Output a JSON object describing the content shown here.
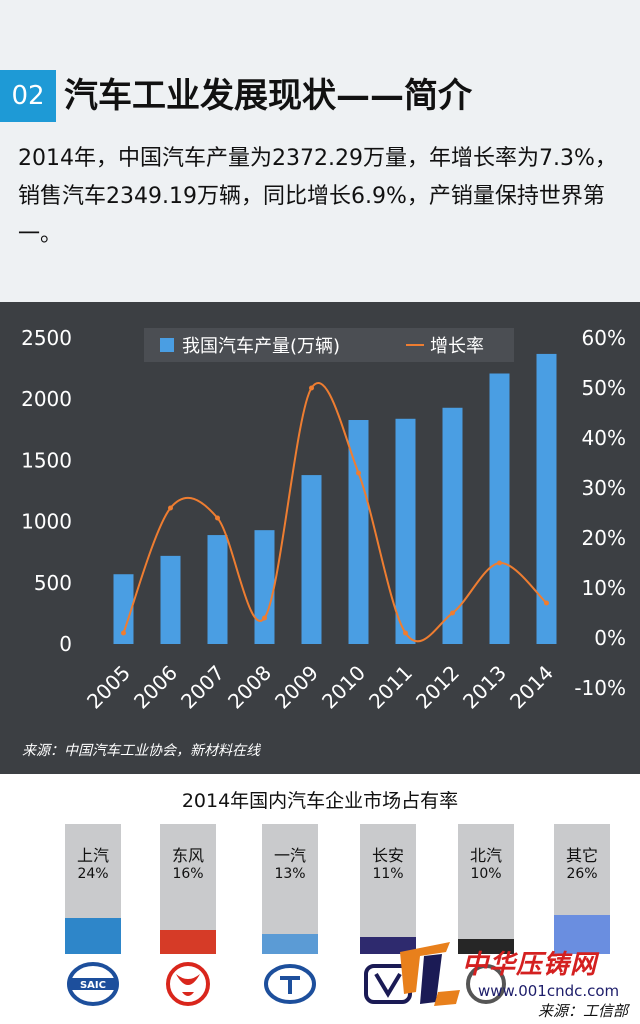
{
  "header": {
    "badge": "02",
    "title": "汽车工业发展现状——简介",
    "intro": "2014年，中国汽车产量为2372.29万量，年增长率为7.3%，销售汽车2349.19万辆，同比增长6.9%，产销量保持世界第一。"
  },
  "chart_data": {
    "type": "bar",
    "categories": [
      "2005",
      "2006",
      "2007",
      "2008",
      "2009",
      "2010",
      "2011",
      "2012",
      "2013",
      "2014"
    ],
    "series": [
      {
        "name": "我国汽车产量(万辆)",
        "type": "bar",
        "axis": "left",
        "values": [
          570,
          720,
          890,
          930,
          1380,
          1830,
          1840,
          1930,
          2210,
          2370
        ],
        "color": "#4a9ee3"
      },
      {
        "name": "增长率",
        "type": "line",
        "axis": "right",
        "values": [
          0.01,
          0.26,
          0.24,
          0.04,
          0.5,
          0.33,
          0.01,
          0.05,
          0.15,
          0.07
        ],
        "color": "#ee7d31"
      }
    ],
    "y_left": {
      "min": 0,
      "max": 2500,
      "ticks": [
        "0",
        "500",
        "1000",
        "1500",
        "2000",
        "2500"
      ]
    },
    "y_right": {
      "min": -0.1,
      "max": 0.6,
      "ticks": [
        "-10%",
        "0%",
        "10%",
        "20%",
        "30%",
        "40%",
        "50%",
        "60%"
      ]
    },
    "legend": "top",
    "source": "来源：中国汽车工业协会，新材料在线"
  },
  "market": {
    "title": "2014年国内汽车企业市场占有率",
    "items": [
      {
        "brand": "上汽",
        "share": "24%",
        "value": 0.24,
        "color": "#2e86c9",
        "logo": "saic-logo",
        "logo_text": "SAIC"
      },
      {
        "brand": "东风",
        "share": "16%",
        "value": 0.16,
        "color": "#d63b27",
        "logo": "dongfeng-logo"
      },
      {
        "brand": "一汽",
        "share": "13%",
        "value": 0.13,
        "color": "#5b9bd5",
        "logo": "faw-logo"
      },
      {
        "brand": "长安",
        "share": "11%",
        "value": 0.11,
        "color": "#2e2a6e",
        "logo": "changan-logo"
      },
      {
        "brand": "北汽",
        "share": "10%",
        "value": 0.1,
        "color": "#262626",
        "logo": "baic-logo"
      },
      {
        "brand": "其它",
        "share": "26%",
        "value": 0.26,
        "color": "#6a8ee0",
        "logo": ""
      }
    ]
  },
  "watermark": {
    "text": "中华压铸网",
    "url": "www.001cndc.com"
  },
  "credit": "来源：工信部"
}
